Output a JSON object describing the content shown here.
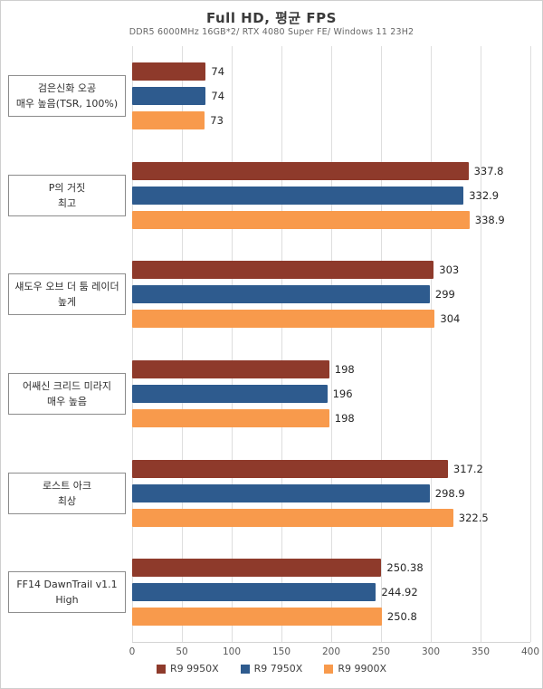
{
  "header": {
    "title": "Full HD, 평균 FPS",
    "subtitle": "DDR5 6000MHz 16GB*2/ RTX 4080 Super FE/ Windows 11 23H2"
  },
  "chart_data": {
    "type": "bar",
    "orientation": "horizontal",
    "title": "Full HD, 평균 FPS",
    "subtitle": "DDR5 6000MHz 16GB*2/ RTX 4080 Super FE/ Windows 11 23H2",
    "categories": [
      {
        "line1": "검은신화 오공",
        "line2": "매우 높음(TSR, 100%)"
      },
      {
        "line1": "P의 거짓",
        "line2": "최고"
      },
      {
        "line1": "섀도우 오브 더 툼 레이더",
        "line2": "높게"
      },
      {
        "line1": "어쌔신 크리드 미라지",
        "line2": "매우 높음"
      },
      {
        "line1": "로스트 아크",
        "line2": "최상"
      },
      {
        "line1": "FF14 DawnTrail v1.1",
        "line2": "High"
      }
    ],
    "series": [
      {
        "name": "R9 9950X",
        "color": "#8e3a2b",
        "values": [
          74,
          337.8,
          303,
          198,
          317.2,
          250.38
        ],
        "labels": [
          "74",
          "337.8",
          "303",
          "198",
          "317.2",
          "250.38"
        ]
      },
      {
        "name": "R9 7950X",
        "color": "#2e5b8e",
        "values": [
          74,
          332.9,
          299,
          196,
          298.9,
          244.92
        ],
        "labels": [
          "74",
          "332.9",
          "299",
          "196",
          "298.9",
          "244.92"
        ]
      },
      {
        "name": "R9 9900X",
        "color": "#f89a4c",
        "values": [
          73,
          338.9,
          304,
          198,
          322.5,
          250.8
        ],
        "labels": [
          "73",
          "338.9",
          "304",
          "198",
          "322.5",
          "250.8"
        ]
      }
    ],
    "xlim": [
      0,
      400
    ],
    "xticks": [
      0,
      50,
      100,
      150,
      200,
      250,
      300,
      350,
      400
    ],
    "grid": true,
    "legend_position": "bottom"
  }
}
